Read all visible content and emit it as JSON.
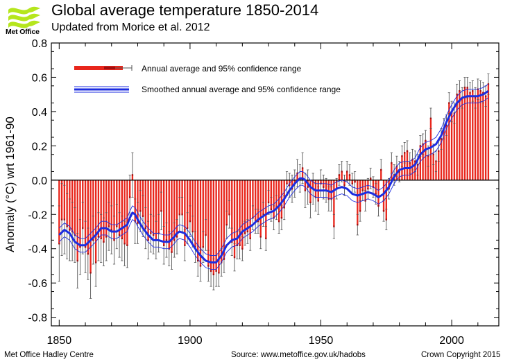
{
  "header": {
    "logo_text": "Met Office",
    "title": "Global average temperature 1850-2014",
    "subtitle": "Updated from Morice et al. 2012"
  },
  "footer": {
    "left": "Met Office Hadley Centre",
    "middle": "Source: www.metoffice.gov.uk/hadobs",
    "right": "Crown Copyright 2015"
  },
  "colors": {
    "bar": "#e8261c",
    "bar_dark": "#a11010",
    "smooth": "#1c2de0",
    "error_bar": "#555555",
    "logo_green": "#b5e61d"
  },
  "chart_data": {
    "type": "bar",
    "title": "",
    "xlabel": "",
    "ylabel": "Anomaly (°C) wrt 1961-90",
    "xlim": [
      1847,
      2018
    ],
    "ylim": [
      -0.85,
      0.8
    ],
    "x_ticks": [
      1850,
      1900,
      1950,
      2000
    ],
    "y_ticks": [
      -0.8,
      -0.6,
      -0.4,
      -0.2,
      0.0,
      0.2,
      0.4,
      0.6,
      0.8
    ],
    "y_tick_labels": [
      "-0.8",
      "-0.6",
      "-0.4",
      "-0.2",
      "0.0",
      "0.2",
      "0.4",
      "0.6",
      "0.8"
    ],
    "grid": false,
    "legend": {
      "placement": "top-left",
      "entries": [
        "Annual average and 95% confidence range",
        "Smoothed annual average and 95% confidence range"
      ]
    },
    "series": [
      {
        "name": "Annual average and 95% confidence range",
        "kind": "bars with error ranges",
        "start_year": 1850,
        "end_year": 2014,
        "values": [
          -0.37,
          -0.23,
          -0.23,
          -0.27,
          -0.29,
          -0.3,
          -0.32,
          -0.47,
          -0.39,
          -0.28,
          -0.39,
          -0.43,
          -0.54,
          -0.35,
          -0.48,
          -0.33,
          -0.34,
          -0.36,
          -0.33,
          -0.27,
          -0.29,
          -0.35,
          -0.27,
          -0.32,
          -0.34,
          -0.37,
          -0.38,
          -0.1,
          0.03,
          -0.24,
          -0.25,
          -0.18,
          -0.21,
          -0.28,
          -0.35,
          -0.31,
          -0.32,
          -0.35,
          -0.31,
          -0.18,
          -0.38,
          -0.35,
          -0.4,
          -0.42,
          -0.35,
          -0.33,
          -0.2,
          -0.2,
          -0.38,
          -0.28,
          -0.24,
          -0.3,
          -0.39,
          -0.47,
          -0.5,
          -0.39,
          -0.32,
          -0.5,
          -0.53,
          -0.55,
          -0.53,
          -0.54,
          -0.48,
          -0.46,
          -0.26,
          -0.2,
          -0.36,
          -0.45,
          -0.38,
          -0.38,
          -0.4,
          -0.31,
          -0.3,
          -0.34,
          -0.22,
          -0.24,
          -0.24,
          -0.33,
          -0.2,
          -0.34,
          -0.13,
          -0.17,
          -0.22,
          -0.16,
          -0.24,
          -0.22,
          -0.16,
          -0.02,
          -0.03,
          -0.05,
          -0.02,
          0.04,
          0.01,
          0.07,
          -0.06,
          -0.04,
          -0.13,
          -0.05,
          -0.1,
          -0.12,
          -0.02,
          -0.04,
          -0.06,
          -0.11,
          -0.11,
          -0.27,
          -0.05,
          0.03,
          0.05,
          -0.03,
          0.05,
          0.03,
          -0.02,
          -0.01,
          -0.26,
          -0.18,
          -0.06,
          -0.12,
          -0.05,
          0.01,
          -0.04,
          -0.08,
          -0.15,
          0.06,
          -0.18,
          -0.23,
          -0.05,
          0.1,
          0.03,
          0.08,
          0.05,
          0.14,
          0.16,
          0.17,
          0.1,
          0.12,
          0.11,
          0.09,
          0.2,
          0.21,
          0.23,
          0.14,
          0.36,
          0.15,
          0.11,
          0.17,
          0.24,
          0.3,
          0.32,
          0.45,
          0.4,
          0.39,
          0.5,
          0.52,
          0.48,
          0.54,
          0.54,
          0.51,
          0.52,
          0.48,
          0.53,
          0.52,
          0.51,
          0.49,
          0.56
        ],
        "ci_halfwidth": [
          0.22,
          0.21,
          0.2,
          0.19,
          0.18,
          0.17,
          0.16,
          0.16,
          0.16,
          0.15,
          0.15,
          0.15,
          0.15,
          0.14,
          0.14,
          0.14,
          0.14,
          0.14,
          0.14,
          0.14,
          0.14,
          0.14,
          0.13,
          0.13,
          0.13,
          0.13,
          0.13,
          0.13,
          0.13,
          0.13,
          0.12,
          0.12,
          0.12,
          0.12,
          0.11,
          0.11,
          0.11,
          0.11,
          0.11,
          0.11,
          0.11,
          0.1,
          0.1,
          0.1,
          0.1,
          0.1,
          0.1,
          0.1,
          0.09,
          0.09,
          0.09,
          0.09,
          0.09,
          0.09,
          0.09,
          0.09,
          0.09,
          0.09,
          0.09,
          0.09,
          0.09,
          0.08,
          0.08,
          0.08,
          0.08,
          0.08,
          0.08,
          0.08,
          0.08,
          0.08,
          0.07,
          0.07,
          0.07,
          0.07,
          0.07,
          0.07,
          0.07,
          0.07,
          0.07,
          0.07,
          0.07,
          0.07,
          0.07,
          0.07,
          0.07,
          0.07,
          0.07,
          0.07,
          0.07,
          0.08,
          0.08,
          0.08,
          0.08,
          0.09,
          0.1,
          0.1,
          0.09,
          0.09,
          0.08,
          0.08,
          0.08,
          0.07,
          0.07,
          0.07,
          0.07,
          0.07,
          0.06,
          0.06,
          0.06,
          0.06,
          0.06,
          0.06,
          0.06,
          0.06,
          0.06,
          0.06,
          0.06,
          0.06,
          0.06,
          0.06,
          0.06,
          0.06,
          0.06,
          0.06,
          0.06,
          0.06,
          0.06,
          0.06,
          0.06,
          0.06,
          0.06,
          0.06,
          0.06,
          0.06,
          0.06,
          0.06,
          0.06,
          0.06,
          0.06,
          0.06,
          0.06,
          0.06,
          0.06,
          0.06,
          0.06,
          0.06,
          0.06,
          0.06,
          0.06,
          0.06,
          0.06,
          0.06,
          0.06,
          0.06,
          0.06,
          0.06,
          0.06,
          0.06,
          0.06,
          0.06,
          0.06,
          0.06,
          0.06,
          0.06,
          0.06,
          0.06,
          0.06,
          0.06,
          0.06,
          0.06,
          0.06,
          0.06,
          0.06,
          0.06,
          0.06,
          0.06
        ]
      },
      {
        "name": "Smoothed annual average and 95% confidence range",
        "kind": "smoothed line with confidence band",
        "points": [
          [
            1850,
            -0.32
          ],
          [
            1852,
            -0.29
          ],
          [
            1854,
            -0.31
          ],
          [
            1856,
            -0.36
          ],
          [
            1858,
            -0.38
          ],
          [
            1860,
            -0.38
          ],
          [
            1862,
            -0.35
          ],
          [
            1864,
            -0.32
          ],
          [
            1866,
            -0.28
          ],
          [
            1868,
            -0.28
          ],
          [
            1870,
            -0.3
          ],
          [
            1872,
            -0.3
          ],
          [
            1874,
            -0.28
          ],
          [
            1876,
            -0.26
          ],
          [
            1877,
            -0.22
          ],
          [
            1878,
            -0.19
          ],
          [
            1879,
            -0.2
          ],
          [
            1880,
            -0.23
          ],
          [
            1882,
            -0.28
          ],
          [
            1884,
            -0.32
          ],
          [
            1886,
            -0.35
          ],
          [
            1888,
            -0.35
          ],
          [
            1890,
            -0.36
          ],
          [
            1892,
            -0.36
          ],
          [
            1894,
            -0.33
          ],
          [
            1895,
            -0.31
          ],
          [
            1896,
            -0.3
          ],
          [
            1898,
            -0.31
          ],
          [
            1900,
            -0.35
          ],
          [
            1902,
            -0.4
          ],
          [
            1904,
            -0.44
          ],
          [
            1906,
            -0.47
          ],
          [
            1908,
            -0.48
          ],
          [
            1910,
            -0.48
          ],
          [
            1912,
            -0.44
          ],
          [
            1914,
            -0.38
          ],
          [
            1916,
            -0.35
          ],
          [
            1918,
            -0.34
          ],
          [
            1920,
            -0.3
          ],
          [
            1922,
            -0.28
          ],
          [
            1924,
            -0.26
          ],
          [
            1926,
            -0.23
          ],
          [
            1928,
            -0.21
          ],
          [
            1930,
            -0.19
          ],
          [
            1932,
            -0.18
          ],
          [
            1934,
            -0.15
          ],
          [
            1936,
            -0.11
          ],
          [
            1938,
            -0.06
          ],
          [
            1940,
            -0.02
          ],
          [
            1942,
            0.01
          ],
          [
            1943,
            0.01
          ],
          [
            1944,
            0.0
          ],
          [
            1946,
            -0.04
          ],
          [
            1948,
            -0.06
          ],
          [
            1950,
            -0.06
          ],
          [
            1952,
            -0.06
          ],
          [
            1954,
            -0.07
          ],
          [
            1956,
            -0.05
          ],
          [
            1958,
            -0.04
          ],
          [
            1960,
            -0.05
          ],
          [
            1962,
            -0.08
          ],
          [
            1964,
            -0.09
          ],
          [
            1966,
            -0.08
          ],
          [
            1968,
            -0.07
          ],
          [
            1970,
            -0.08
          ],
          [
            1972,
            -0.1
          ],
          [
            1974,
            -0.08
          ],
          [
            1976,
            -0.04
          ],
          [
            1978,
            0.02
          ],
          [
            1980,
            0.06
          ],
          [
            1982,
            0.07
          ],
          [
            1984,
            0.07
          ],
          [
            1986,
            0.09
          ],
          [
            1988,
            0.15
          ],
          [
            1990,
            0.18
          ],
          [
            1992,
            0.19
          ],
          [
            1994,
            0.21
          ],
          [
            1996,
            0.26
          ],
          [
            1998,
            0.34
          ],
          [
            2000,
            0.4
          ],
          [
            2002,
            0.45
          ],
          [
            2004,
            0.48
          ],
          [
            2006,
            0.49
          ],
          [
            2008,
            0.49
          ],
          [
            2010,
            0.49
          ],
          [
            2012,
            0.5
          ],
          [
            2014,
            0.52
          ]
        ],
        "band_halfwidth": 0.04
      }
    ]
  }
}
